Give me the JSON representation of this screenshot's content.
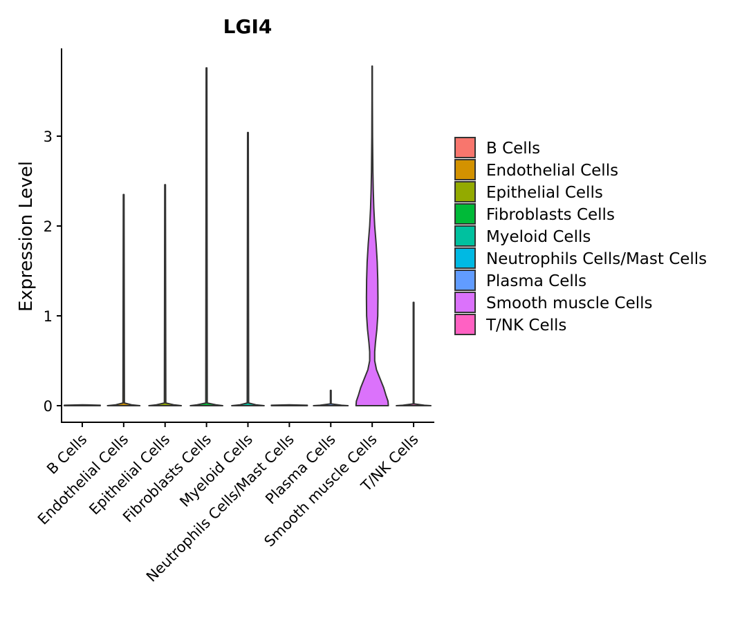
{
  "chart_data": {
    "type": "violin",
    "title": "LGI4",
    "xlabel": "",
    "ylabel": "Expression Level",
    "ylim": [
      -0.18,
      3.98
    ],
    "yticks": [
      0,
      1,
      2,
      3
    ],
    "categories": [
      "B Cells",
      "Endothelial Cells",
      "Epithelial Cells",
      "Fibroblasts Cells",
      "Myeloid Cells",
      "Neutrophils Cells/Mast Cells",
      "Plasma Cells",
      "Smooth muscle Cells",
      "T/NK Cells"
    ],
    "colors": [
      "#F8766D",
      "#D39200",
      "#93AA00",
      "#00BA38",
      "#00C19F",
      "#00B9E3",
      "#619CFF",
      "#DB72FB",
      "#FF61C3"
    ],
    "max_values": [
      0,
      2.35,
      2.46,
      3.76,
      3.04,
      0,
      0.17,
      3.78,
      1.15
    ],
    "series": [
      {
        "name": "B Cells",
        "profile": [
          [
            0,
            0.5
          ],
          [
            0.005,
            0.5
          ],
          [
            0.01,
            0
          ]
        ]
      },
      {
        "name": "Endothelial Cells",
        "profile": [
          [
            0,
            0.45
          ],
          [
            0.01,
            0.22
          ],
          [
            0.03,
            0.02
          ],
          [
            2.35,
            0.01
          ]
        ]
      },
      {
        "name": "Epithelial Cells",
        "profile": [
          [
            0,
            0.45
          ],
          [
            0.01,
            0.24
          ],
          [
            0.03,
            0.02
          ],
          [
            2.46,
            0.01
          ]
        ]
      },
      {
        "name": "Fibroblasts Cells",
        "profile": [
          [
            0,
            0.45
          ],
          [
            0.01,
            0.26
          ],
          [
            0.03,
            0.02
          ],
          [
            3.76,
            0.01
          ]
        ]
      },
      {
        "name": "Myeloid Cells",
        "profile": [
          [
            0,
            0.45
          ],
          [
            0.01,
            0.22
          ],
          [
            0.03,
            0.02
          ],
          [
            3.04,
            0.01
          ]
        ]
      },
      {
        "name": "Neutrophils Cells/Mast Cells",
        "profile": [
          [
            0,
            0.5
          ],
          [
            0.005,
            0.5
          ],
          [
            0.01,
            0
          ]
        ]
      },
      {
        "name": "Plasma Cells",
        "profile": [
          [
            0,
            0.48
          ],
          [
            0.005,
            0.3
          ],
          [
            0.02,
            0.01
          ],
          [
            0.17,
            0.01
          ]
        ]
      },
      {
        "name": "Smooth muscle Cells",
        "profile": [
          [
            0,
            0.45
          ],
          [
            0.05,
            0.44
          ],
          [
            0.12,
            0.38
          ],
          [
            0.2,
            0.32
          ],
          [
            0.3,
            0.22
          ],
          [
            0.4,
            0.12
          ],
          [
            0.5,
            0.07
          ],
          [
            0.6,
            0.07
          ],
          [
            0.7,
            0.09
          ],
          [
            0.85,
            0.13
          ],
          [
            1.0,
            0.155
          ],
          [
            1.2,
            0.16
          ],
          [
            1.4,
            0.155
          ],
          [
            1.6,
            0.14
          ],
          [
            1.8,
            0.11
          ],
          [
            2.0,
            0.07
          ],
          [
            2.2,
            0.045
          ],
          [
            2.4,
            0.03
          ],
          [
            2.6,
            0.02
          ],
          [
            3.0,
            0.01
          ],
          [
            3.4,
            0.006
          ],
          [
            3.78,
            0.005
          ]
        ]
      },
      {
        "name": "T/NK Cells",
        "profile": [
          [
            0,
            0.48
          ],
          [
            0.005,
            0.3
          ],
          [
            0.02,
            0.01
          ],
          [
            1.15,
            0.01
          ]
        ]
      }
    ],
    "legend": {
      "position": "right",
      "entries": [
        "B Cells",
        "Endothelial Cells",
        "Epithelial Cells",
        "Fibroblasts Cells",
        "Myeloid Cells",
        "Neutrophils Cells/Mast Cells",
        "Plasma Cells",
        "Smooth muscle Cells",
        "T/NK Cells"
      ]
    },
    "grid": false
  }
}
